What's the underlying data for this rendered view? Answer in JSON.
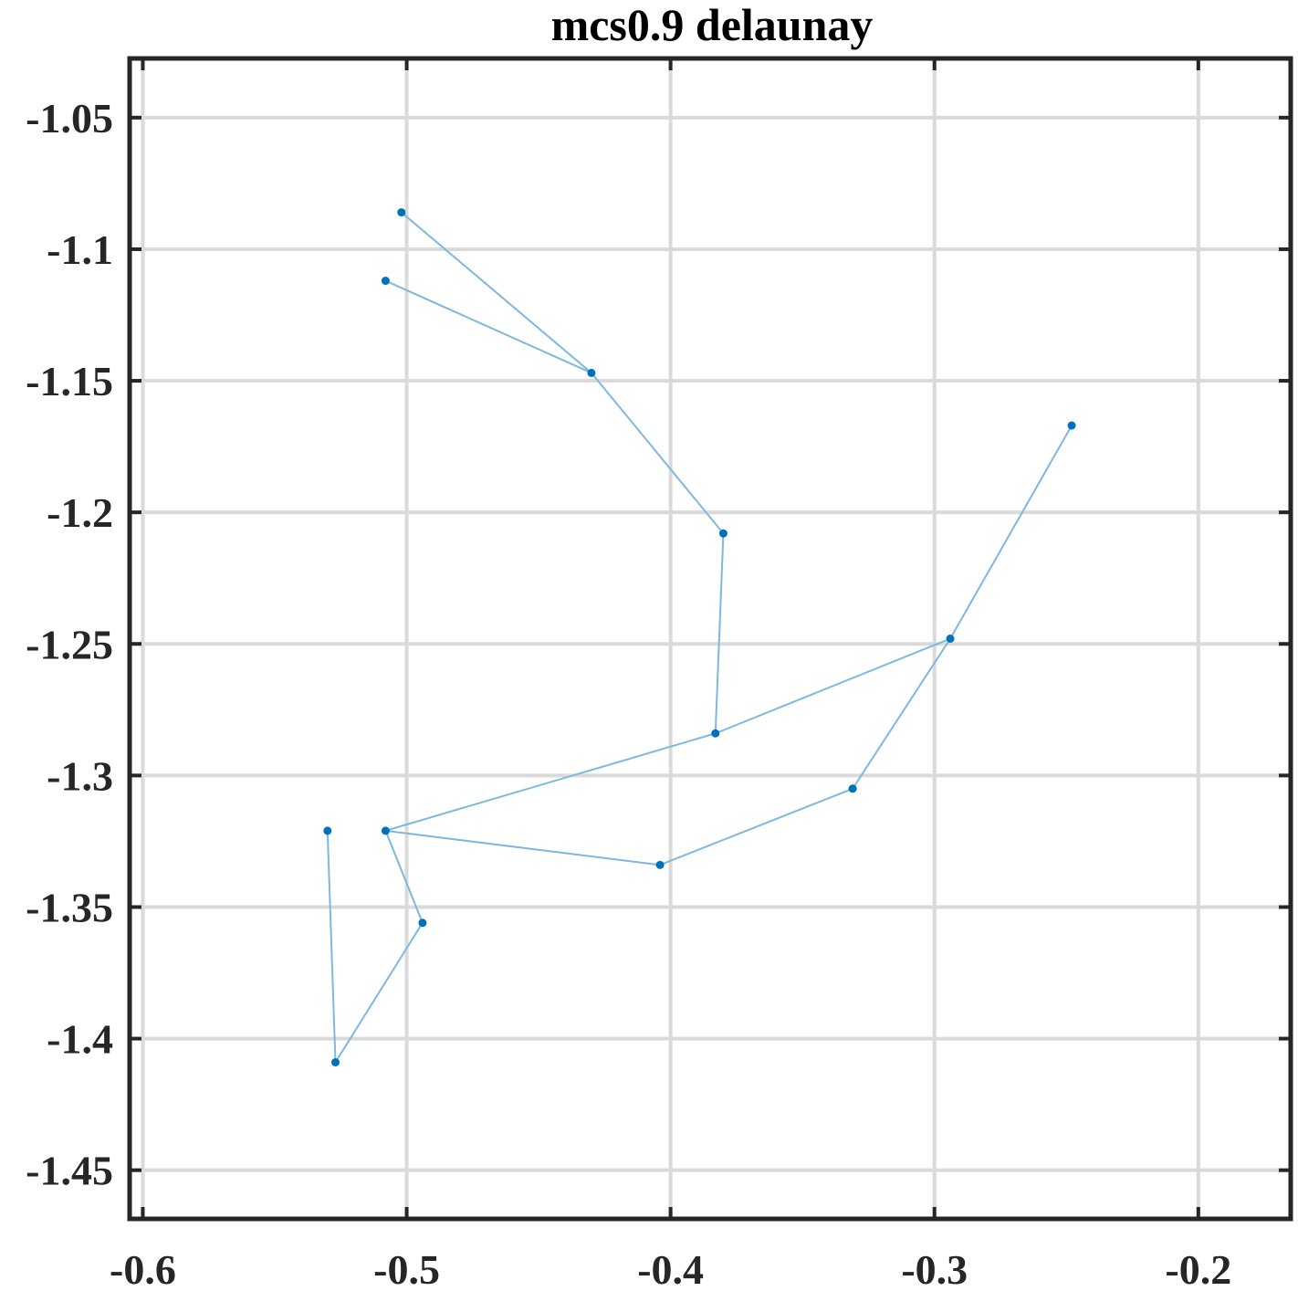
{
  "chart_data": {
    "type": "scatter",
    "title": "mcs0.9 delaunay",
    "xlabel": "",
    "ylabel": "",
    "xlim": [
      -0.605,
      -0.165
    ],
    "ylim": [
      -1.4685,
      -1.0275
    ],
    "xticks": [
      -0.6,
      -0.5,
      -0.4,
      -0.3,
      -0.2
    ],
    "xtick_labels": [
      "-0.6",
      "-0.5",
      "-0.4",
      "-0.3",
      "-0.2"
    ],
    "yticks": [
      -1.05,
      -1.1,
      -1.15,
      -1.2,
      -1.25,
      -1.3,
      -1.35,
      -1.4,
      -1.45
    ],
    "ytick_labels": [
      "-1.05",
      "-1.1",
      "-1.15",
      "-1.2",
      "-1.25",
      "-1.3",
      "-1.35",
      "-1.4",
      "-1.45"
    ],
    "grid": true,
    "colors": {
      "points": "#0072BD",
      "edges": "#7FB8DE",
      "grid": "#DADADA",
      "axes": "#262626"
    },
    "points": [
      {
        "x": -0.502,
        "y": -1.086
      },
      {
        "x": -0.508,
        "y": -1.112
      },
      {
        "x": -0.43,
        "y": -1.147
      },
      {
        "x": -0.38,
        "y": -1.208
      },
      {
        "x": -0.383,
        "y": -1.284
      },
      {
        "x": -0.294,
        "y": -1.248
      },
      {
        "x": -0.248,
        "y": -1.167
      },
      {
        "x": -0.331,
        "y": -1.305
      },
      {
        "x": -0.404,
        "y": -1.334
      },
      {
        "x": -0.508,
        "y": -1.321
      },
      {
        "x": -0.53,
        "y": -1.321
      },
      {
        "x": -0.494,
        "y": -1.356
      },
      {
        "x": -0.527,
        "y": -1.409
      }
    ],
    "edges": [
      [
        0,
        2
      ],
      [
        1,
        2
      ],
      [
        2,
        3
      ],
      [
        3,
        4
      ],
      [
        4,
        5
      ],
      [
        4,
        9
      ],
      [
        5,
        6
      ],
      [
        5,
        7
      ],
      [
        7,
        8
      ],
      [
        8,
        9
      ],
      [
        9,
        11
      ],
      [
        11,
        12
      ],
      [
        12,
        10
      ]
    ]
  }
}
